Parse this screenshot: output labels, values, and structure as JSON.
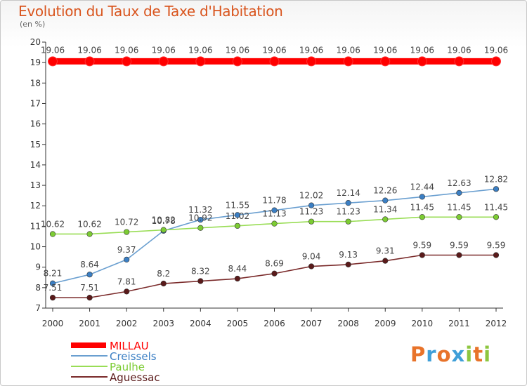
{
  "title": "Evolution du Taux de Taxe d'Habitation",
  "subtitle": "(en %)",
  "logo": {
    "text": [
      "P",
      "r",
      "o",
      "x",
      "i",
      "t",
      "i"
    ],
    "colors": [
      "#e8732a",
      "#3f9fd8",
      "#e8732a",
      "#3f9fd8",
      "#8dc63f",
      "#e8732a",
      "#8dc63f"
    ]
  },
  "chart_data": {
    "type": "line",
    "title": "Evolution du Taux de Taxe d'Habitation",
    "ylabel": "(en %)",
    "xlabel": "",
    "ylim": [
      7,
      20
    ],
    "yticks": [
      "7",
      "8",
      "9",
      "10",
      "11",
      "12",
      "13",
      "14",
      "15",
      "16",
      "17",
      "18",
      "19",
      "20"
    ],
    "categories": [
      "2000",
      "2001",
      "2002",
      "2003",
      "2004",
      "2005",
      "2006",
      "2007",
      "2008",
      "2009",
      "2010",
      "2011",
      "2012"
    ],
    "series": [
      {
        "name": "MILLAU",
        "color": "#ff0000",
        "point_color": "#ff0000",
        "values": [
          19.06,
          19.06,
          19.06,
          19.06,
          19.06,
          19.06,
          19.06,
          19.06,
          19.06,
          19.06,
          19.06,
          19.06,
          19.06
        ],
        "labels": [
          "19.06",
          "19.06",
          "19.06",
          "19.06",
          "19.06",
          "19.06",
          "19.06",
          "19.06",
          "19.06",
          "19.06",
          "19.06",
          "19.06",
          "19.06"
        ]
      },
      {
        "name": "Creissels",
        "color": "#6a9fd0",
        "point_color": "#3b7fc4",
        "values": [
          8.21,
          8.64,
          9.37,
          10.78,
          11.32,
          11.55,
          11.78,
          12.02,
          12.14,
          12.26,
          12.44,
          12.63,
          12.82
        ],
        "labels": [
          "8.21",
          "8.64",
          "9.37",
          "10.78",
          "11.32",
          "11.55",
          "11.78",
          "12.02",
          "12.14",
          "12.26",
          "12.44",
          "12.63",
          "12.82"
        ]
      },
      {
        "name": "Paulhe",
        "color": "#99dd55",
        "point_color": "#7ccc33",
        "values": [
          10.62,
          10.62,
          10.72,
          10.82,
          10.92,
          11.02,
          11.13,
          11.23,
          11.23,
          11.34,
          11.45,
          11.45,
          11.45
        ],
        "labels": [
          "10.62",
          "10.62",
          "10.72",
          "10.82",
          "10.92",
          "11.02",
          "11.13",
          "11.23",
          "11.23",
          "11.34",
          "11.45",
          "11.45",
          "11.45"
        ]
      },
      {
        "name": "Aguessac",
        "color": "#7a2a2a",
        "point_color": "#5a1a1a",
        "values": [
          7.51,
          7.51,
          7.81,
          8.2,
          8.32,
          8.44,
          8.69,
          9.04,
          9.13,
          9.31,
          9.59,
          9.59,
          9.59
        ],
        "labels": [
          "7.51",
          "7.51",
          "7.81",
          "8.2",
          "8.32",
          "8.44",
          "8.69",
          "9.04",
          "9.13",
          "9.31",
          "9.59",
          "9.59",
          "9.59"
        ]
      }
    ],
    "legend_position": "bottom-left"
  }
}
